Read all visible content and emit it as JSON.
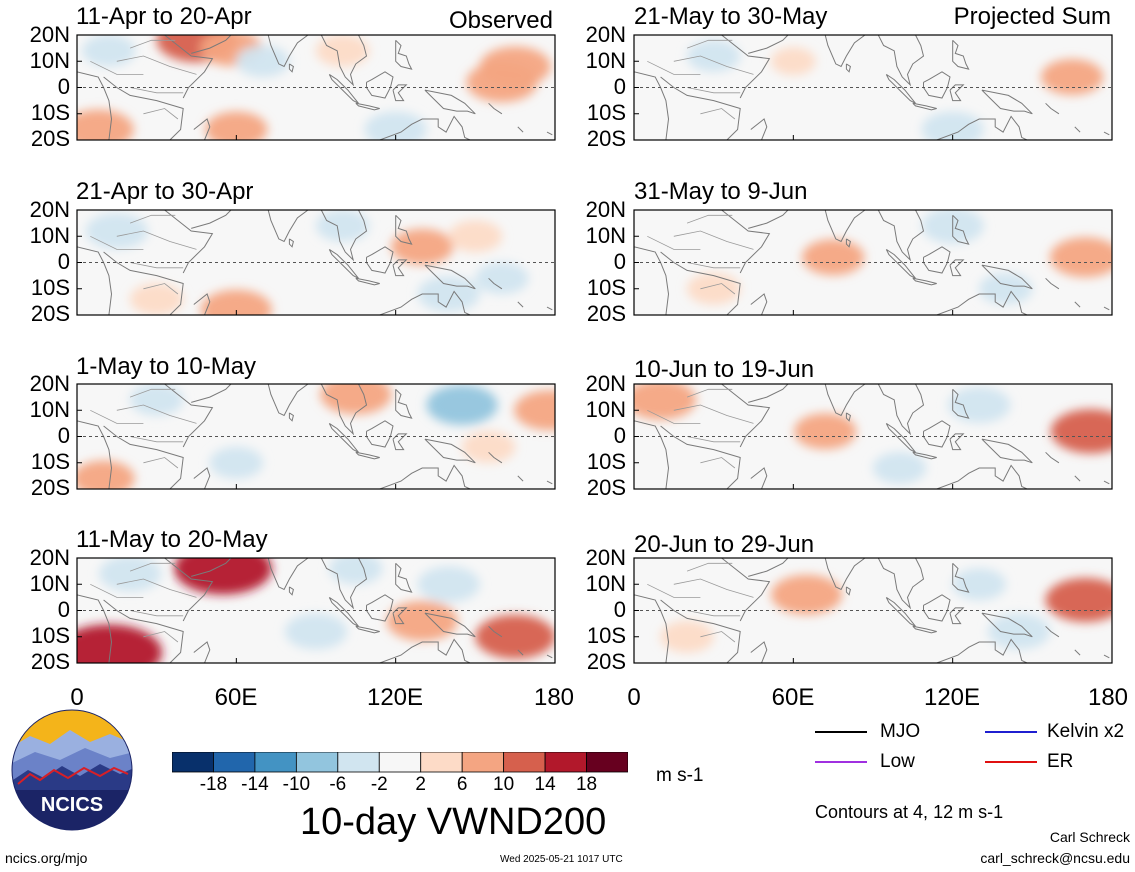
{
  "panel_titles": {
    "p1": "11-Apr to 20-Apr",
    "p2": "21-Apr to 30-Apr",
    "p3": "1-May to 10-May",
    "p4": "11-May to 20-May",
    "p5": "21-May to 30-May",
    "p6": "31-May to 9-Jun",
    "p7": "10-Jun to 19-Jun",
    "p8": "20-Jun to 29-Jun"
  },
  "column_tags": {
    "observed": "Observed",
    "projected": "Projected Sum"
  },
  "lat_labels": [
    "20N",
    "10N",
    "0",
    "10S",
    "20S"
  ],
  "lon_labels": [
    "0",
    "60E",
    "120E",
    "180"
  ],
  "colorbar": {
    "ticks": [
      "-18",
      "-14",
      "-10",
      "-6",
      "-2",
      "2",
      "6",
      "10",
      "14",
      "18"
    ],
    "colors": [
      "#08306b",
      "#2166ac",
      "#4393c3",
      "#92c5de",
      "#d1e5f0",
      "#f7f7f7",
      "#fddbc7",
      "#f4a582",
      "#d6604d",
      "#b2182b",
      "#67001f"
    ],
    "units": "m s-1"
  },
  "main_title": "10-day VWND200",
  "legend": {
    "mjo": "MJO",
    "kelvin": "Kelvin x2",
    "low": "Low",
    "er": "ER",
    "colors": {
      "mjo": "#000000",
      "kelvin": "#1f1fd0",
      "low": "#a030e0",
      "er": "#e01010"
    },
    "contour_note": "Contours at 4, 12 m s-1"
  },
  "logo_text": "NCICS",
  "footer": {
    "site": "ncics.org/mjo",
    "timestamp": "Wed 2025-05-21 1017 UTC",
    "author": "Carl Schreck",
    "email": "carl_schreck@ncsu.edu"
  },
  "chart_data": {
    "type": "heatmap",
    "variable": "VWND200",
    "units": "m s-1",
    "xlim": [
      0,
      180
    ],
    "ylim": [
      -20,
      20
    ],
    "x_ticks": [
      "0",
      "60E",
      "120E",
      "180"
    ],
    "y_ticks": [
      "20N",
      "10N",
      "0",
      "10S",
      "20S"
    ],
    "contour_levels": [
      4,
      12
    ],
    "panels": [
      {
        "key": "p1",
        "title": "11-Apr to 20-Apr",
        "column": "Observed",
        "anomalies": [
          {
            "lon": 45,
            "lat": 18,
            "v": 10
          },
          {
            "lon": 58,
            "lat": 15,
            "v": 6
          },
          {
            "lon": 12,
            "lat": 14,
            "v": -4
          },
          {
            "lon": 160,
            "lat": 2,
            "v": 8
          },
          {
            "lon": 165,
            "lat": 8,
            "v": 8
          },
          {
            "lon": 120,
            "lat": -16,
            "v": -6
          },
          {
            "lon": 8,
            "lat": -16,
            "v": 8
          },
          {
            "lon": 60,
            "lat": -16,
            "v": 6
          },
          {
            "lon": 100,
            "lat": 14,
            "v": 4
          },
          {
            "lon": 70,
            "lat": 10,
            "v": -4
          }
        ]
      },
      {
        "key": "p2",
        "title": "21-Apr to 30-Apr",
        "column": "Observed",
        "anomalies": [
          {
            "lon": 15,
            "lat": 12,
            "v": -6
          },
          {
            "lon": 130,
            "lat": 6,
            "v": 6
          },
          {
            "lon": 150,
            "lat": 10,
            "v": 4
          },
          {
            "lon": 140,
            "lat": -12,
            "v": -6
          },
          {
            "lon": 160,
            "lat": -6,
            "v": -4
          },
          {
            "lon": 60,
            "lat": -18,
            "v": 8
          },
          {
            "lon": 100,
            "lat": 14,
            "v": -4
          },
          {
            "lon": 30,
            "lat": -14,
            "v": 4
          }
        ]
      },
      {
        "key": "p3",
        "title": "1-May to 10-May",
        "column": "Observed",
        "anomalies": [
          {
            "lon": 145,
            "lat": 12,
            "v": -8
          },
          {
            "lon": 105,
            "lat": 16,
            "v": 8
          },
          {
            "lon": 178,
            "lat": 10,
            "v": 8
          },
          {
            "lon": 155,
            "lat": -4,
            "v": 4
          },
          {
            "lon": 10,
            "lat": -16,
            "v": 6
          },
          {
            "lon": 60,
            "lat": -10,
            "v": -4
          },
          {
            "lon": 30,
            "lat": 14,
            "v": -4
          }
        ]
      },
      {
        "key": "p4",
        "title": "11-May to 20-May",
        "column": "Observed",
        "anomalies": [
          {
            "lon": 55,
            "lat": 16,
            "v": 14
          },
          {
            "lon": 20,
            "lat": 14,
            "v": -6
          },
          {
            "lon": 130,
            "lat": -4,
            "v": 8
          },
          {
            "lon": 165,
            "lat": -10,
            "v": 10
          },
          {
            "lon": 12,
            "lat": -16,
            "v": 16
          },
          {
            "lon": 90,
            "lat": -8,
            "v": -6
          },
          {
            "lon": 140,
            "lat": 10,
            "v": -6
          },
          {
            "lon": 105,
            "lat": 16,
            "v": -4
          }
        ]
      },
      {
        "key": "p5",
        "title": "21-May to 30-May",
        "column": "Projected Sum",
        "anomalies": [
          {
            "lon": 165,
            "lat": 4,
            "v": 6
          },
          {
            "lon": 30,
            "lat": 12,
            "v": -4
          },
          {
            "lon": 120,
            "lat": -16,
            "v": -6
          },
          {
            "lon": 60,
            "lat": 10,
            "v": 2
          }
        ]
      },
      {
        "key": "p6",
        "title": "31-May to 9-Jun",
        "column": "Projected Sum",
        "anomalies": [
          {
            "lon": 75,
            "lat": 2,
            "v": 6
          },
          {
            "lon": 170,
            "lat": 2,
            "v": 8
          },
          {
            "lon": 120,
            "lat": 14,
            "v": -6
          },
          {
            "lon": 30,
            "lat": -10,
            "v": 4
          },
          {
            "lon": 140,
            "lat": -10,
            "v": -4
          }
        ]
      },
      {
        "key": "p7",
        "title": "10-Jun to 19-Jun",
        "column": "Projected Sum",
        "anomalies": [
          {
            "lon": 72,
            "lat": 2,
            "v": 6
          },
          {
            "lon": 172,
            "lat": 2,
            "v": 10
          },
          {
            "lon": 130,
            "lat": 12,
            "v": -6
          },
          {
            "lon": 10,
            "lat": 14,
            "v": 8
          },
          {
            "lon": 100,
            "lat": -12,
            "v": -4
          }
        ]
      },
      {
        "key": "p8",
        "title": "20-Jun to 29-Jun",
        "column": "Projected Sum",
        "anomalies": [
          {
            "lon": 65,
            "lat": 6,
            "v": 8
          },
          {
            "lon": 170,
            "lat": 4,
            "v": 10
          },
          {
            "lon": 130,
            "lat": 10,
            "v": -4
          },
          {
            "lon": 145,
            "lat": -8,
            "v": -6
          },
          {
            "lon": 20,
            "lat": -10,
            "v": 4
          }
        ]
      }
    ]
  }
}
